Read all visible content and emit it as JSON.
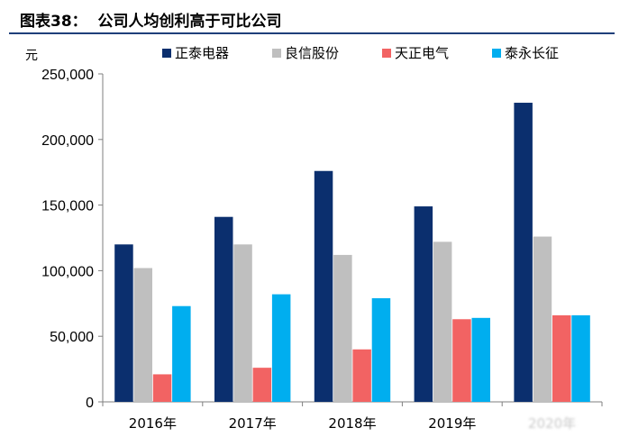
{
  "header": {
    "title": "图表38：  公司人均创利高于可比公司"
  },
  "chart_data": {
    "type": "bar",
    "title": "图表38：  公司人均创利高于可比公司",
    "ylabel": "元",
    "xlabel": "",
    "ylim": [
      0,
      250000
    ],
    "yticks": [
      "0",
      "50,000",
      "100,000",
      "150,000",
      "200,000",
      "250,000"
    ],
    "categories": [
      "2016年",
      "2017年",
      "2018年",
      "2019年",
      "2020年"
    ],
    "legend_position": "top",
    "grid": false,
    "series": [
      {
        "name": "正泰电器",
        "color": "#0b2f6e",
        "values": [
          120000,
          141000,
          176000,
          149000,
          228000
        ]
      },
      {
        "name": "良信股份",
        "color": "#bfbfbf",
        "values": [
          102000,
          120000,
          112000,
          122000,
          126000
        ]
      },
      {
        "name": "天正电气",
        "color": "#f26363",
        "values": [
          21000,
          26000,
          40000,
          63000,
          66000
        ]
      },
      {
        "name": "泰永长征",
        "color": "#00aeef",
        "values": [
          73000,
          82000,
          79000,
          64000,
          66000
        ]
      }
    ]
  }
}
